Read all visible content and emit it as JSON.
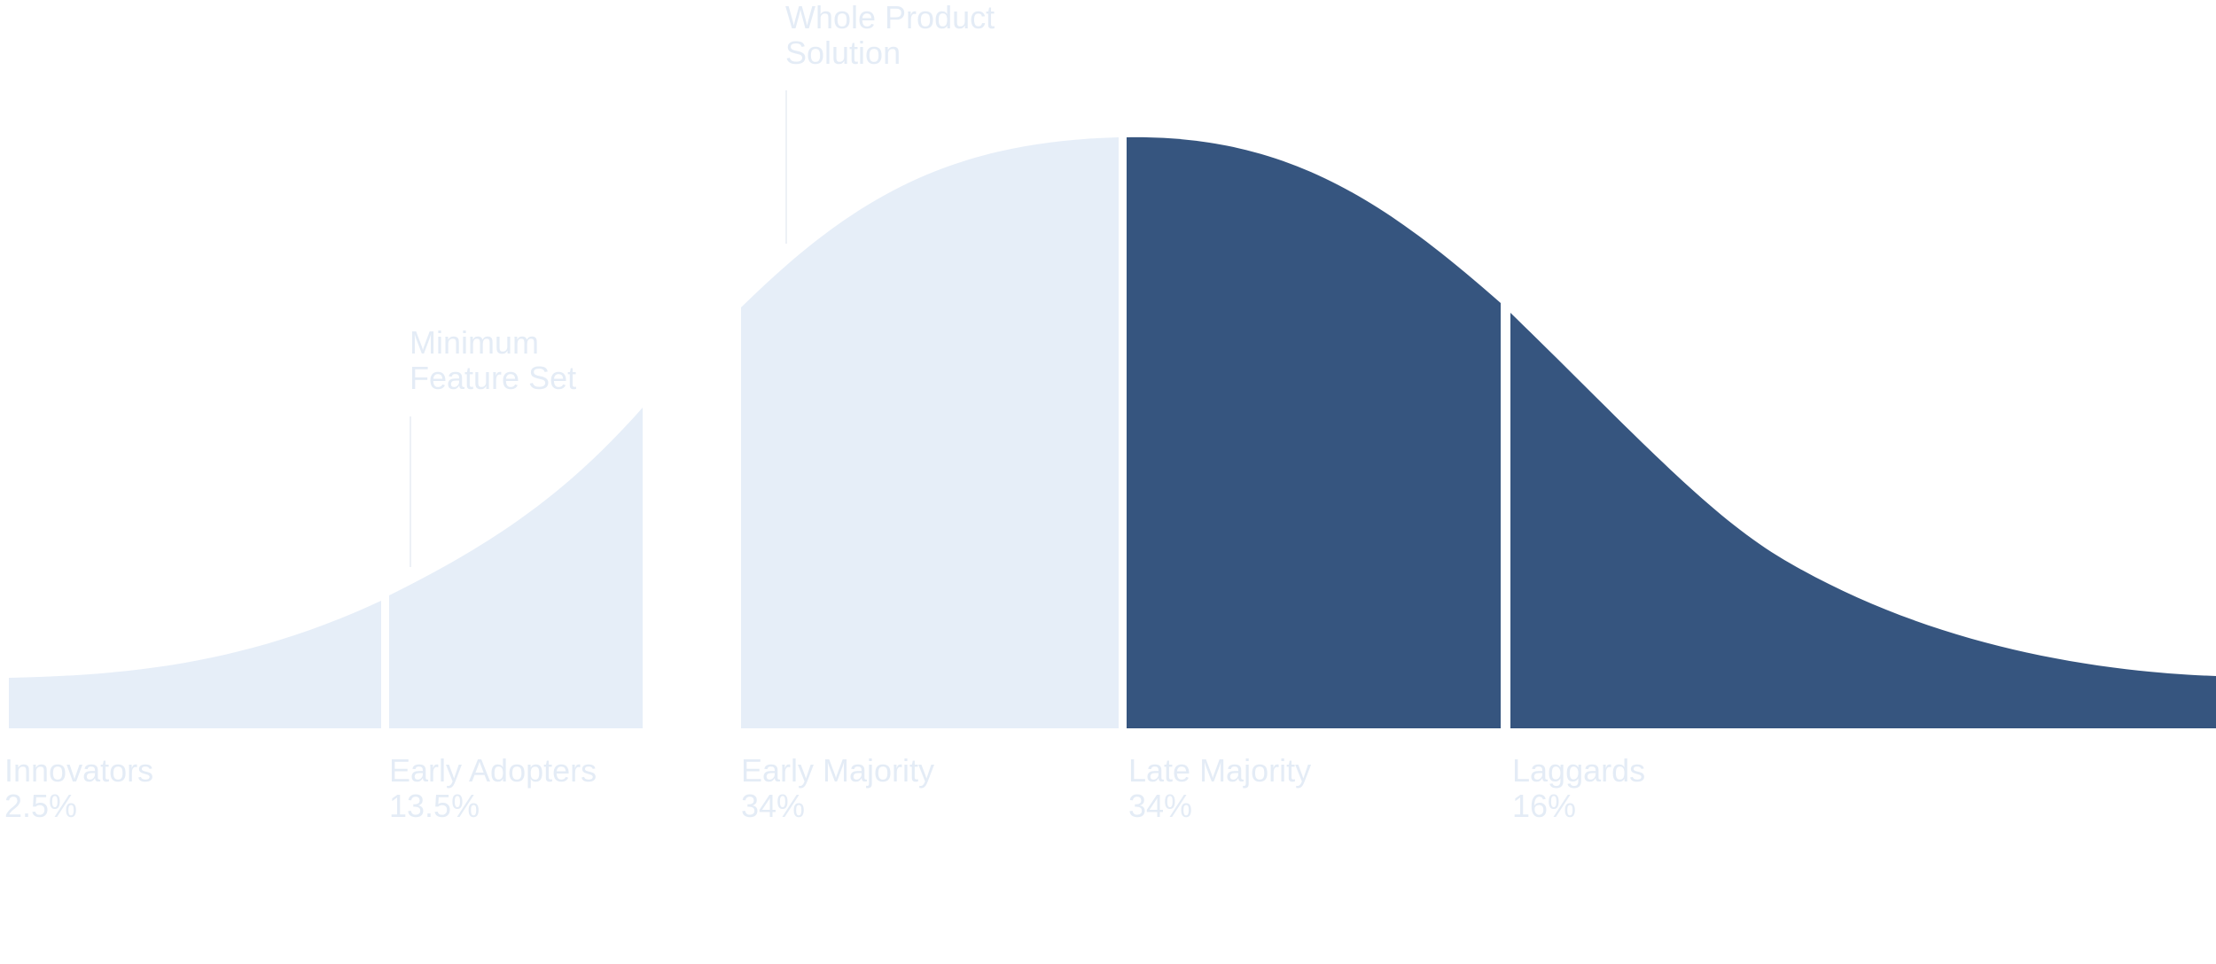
{
  "colors": {
    "light_segment": "#e6eef8",
    "dark_segment": "#36557f",
    "text": "#e4ecf6",
    "leader_line": "#edf1f6"
  },
  "annotations": {
    "minimum_feature_set": {
      "line1": "Minimum",
      "line2": "Feature Set"
    },
    "whole_product_solution": {
      "line1": "Whole Product",
      "line2": "Solution"
    }
  },
  "segments": [
    {
      "name": "Innovators",
      "percent": "2.5%",
      "shade": "light"
    },
    {
      "name": "Early Adopters",
      "percent": "13.5%",
      "shade": "light"
    },
    {
      "name": "Early Majority",
      "percent": "34%",
      "shade": "light"
    },
    {
      "name": "Late Majority",
      "percent": "34%",
      "shade": "dark"
    },
    {
      "name": "Laggards",
      "percent": "16%",
      "shade": "dark"
    }
  ]
}
